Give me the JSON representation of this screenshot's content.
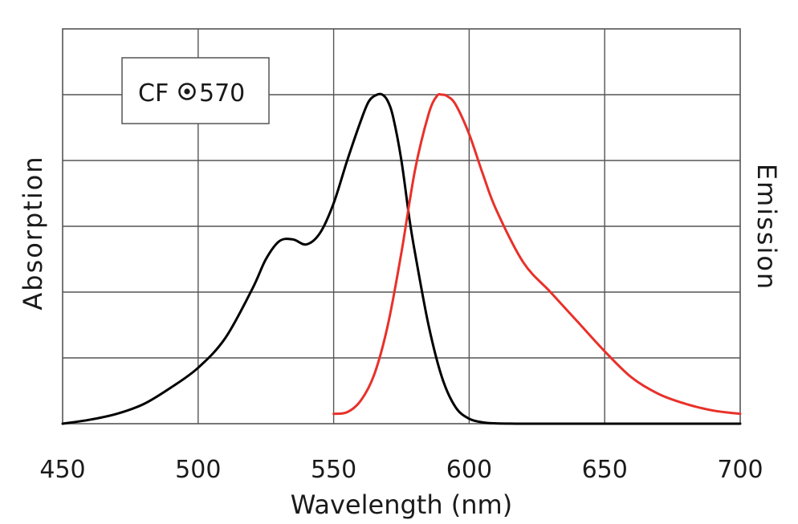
{
  "chart_data": {
    "type": "line",
    "title": "",
    "xlabel": "Wavelength (nm)",
    "ylabel": "Absorption",
    "ylabel_right": "Emission",
    "xlim": [
      450,
      700
    ],
    "ylim": [
      0,
      1.2
    ],
    "x_ticks": [
      450,
      500,
      550,
      600,
      650,
      700
    ],
    "x_tick_labels": [
      "450",
      "500",
      "550",
      "600",
      "650",
      "700"
    ],
    "y_tick_labels_shown": false,
    "grid": true,
    "legend": {
      "position": "top-left",
      "brand": "CF",
      "dye": "570"
    },
    "series": [
      {
        "name": "Absorption",
        "color": "#000000",
        "x": [
          450,
          460,
          470,
          480,
          490,
          500,
          510,
          520,
          525,
          530,
          535,
          540,
          545,
          550,
          555,
          560,
          563,
          566,
          568,
          570,
          572,
          575,
          578,
          580,
          585,
          590,
          595,
          600,
          605,
          610,
          620,
          650,
          700
        ],
        "y": [
          0.0,
          0.012,
          0.03,
          0.06,
          0.11,
          0.17,
          0.26,
          0.41,
          0.5,
          0.555,
          0.56,
          0.545,
          0.58,
          0.67,
          0.8,
          0.92,
          0.98,
          1.0,
          1.0,
          0.98,
          0.93,
          0.8,
          0.62,
          0.52,
          0.3,
          0.14,
          0.05,
          0.015,
          0.004,
          0.001,
          0.0,
          0.0,
          0.0
        ]
      },
      {
        "name": "Emission",
        "color": "#e8312a",
        "x": [
          550,
          555,
          560,
          565,
          570,
          575,
          580,
          585,
          588,
          590,
          592,
          595,
          600,
          605,
          610,
          620,
          630,
          640,
          650,
          660,
          670,
          680,
          690,
          700
        ],
        "y": [
          0.03,
          0.035,
          0.07,
          0.15,
          0.3,
          0.52,
          0.77,
          0.94,
          0.995,
          1.0,
          0.995,
          0.97,
          0.88,
          0.76,
          0.65,
          0.49,
          0.4,
          0.31,
          0.22,
          0.14,
          0.09,
          0.06,
          0.04,
          0.03
        ]
      }
    ]
  }
}
